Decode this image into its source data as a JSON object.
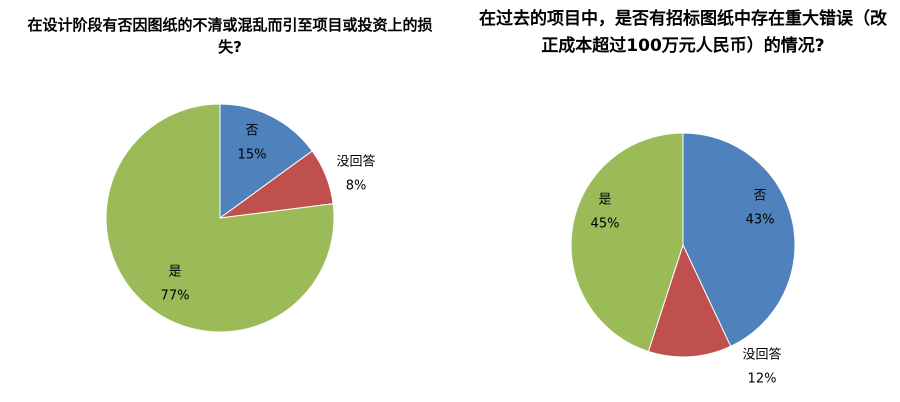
{
  "chart_data": [
    {
      "type": "pie",
      "title": "在设计阶段有否因图纸的不清或混乱而引至项目或投资上的损失?",
      "categories": [
        "否",
        "没回答",
        "是"
      ],
      "values": [
        15,
        8,
        77
      ],
      "value_labels": [
        "15%",
        "8%",
        "77%"
      ],
      "colors": [
        "#4f81bd",
        "#c0504d",
        "#9bbb59"
      ]
    },
    {
      "type": "pie",
      "title": "在过去的项目中，是否有招标图纸中存在重大错误（改正成本超过100万元人民币）的情况?",
      "categories": [
        "否",
        "没回答",
        "是"
      ],
      "values": [
        43,
        12,
        45
      ],
      "value_labels": [
        "43%",
        "12%",
        "45%"
      ],
      "colors": [
        "#4f81bd",
        "#c0504d",
        "#9bbb59"
      ]
    }
  ]
}
